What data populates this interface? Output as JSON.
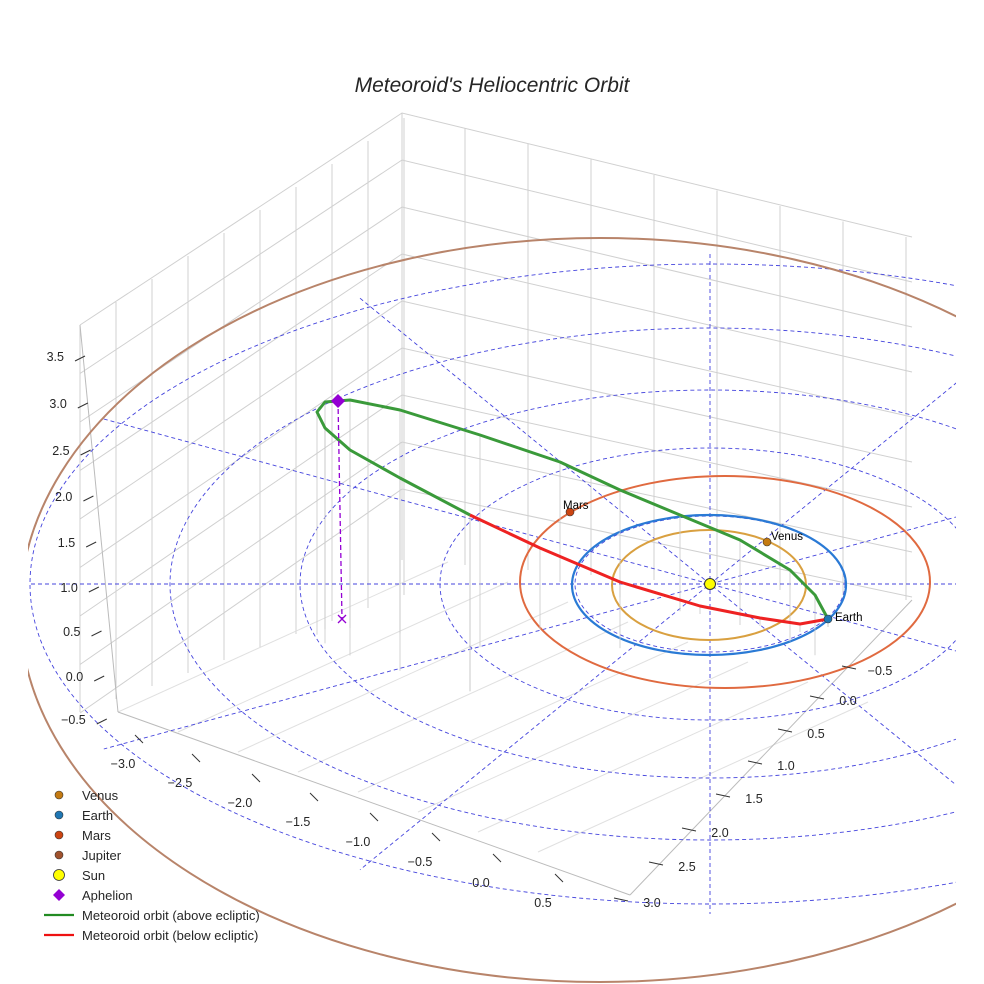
{
  "chart_data": {
    "type": "line3d",
    "title": "Meteoroid's Heliocentric Orbit",
    "x_ticks": [
      "−3.0",
      "−2.5",
      "−2.0",
      "−1.5",
      "−1.0",
      "−0.5",
      "0.0",
      "0.5"
    ],
    "y_ticks": [
      "−0.5",
      "0.0",
      "0.5",
      "1.0",
      "1.5",
      "2.0",
      "2.5",
      "3.0"
    ],
    "z_ticks": [
      "3.5",
      "3.0",
      "2.5",
      "2.0",
      "1.5",
      "1.0",
      "0.5",
      "0.0",
      "−0.5"
    ],
    "planet_labels": {
      "venus": "Venus",
      "earth": "Earth",
      "mars": "Mars"
    },
    "legend": [
      {
        "label": "Venus",
        "kind": "dot",
        "color": "#c47a12"
      },
      {
        "label": "Earth",
        "kind": "dot",
        "color": "#1f77b4"
      },
      {
        "label": "Mars",
        "kind": "dot",
        "color": "#cc4411"
      },
      {
        "label": "Jupiter",
        "kind": "dot",
        "color": "#a0522d"
      },
      {
        "label": "Sun",
        "kind": "sun",
        "color": "#ffff00"
      },
      {
        "label": "Aphelion",
        "kind": "diamond",
        "color": "#9400d3"
      },
      {
        "label": "Meteoroid orbit (above ecliptic)",
        "kind": "line",
        "color": "#228b22"
      },
      {
        "label": "Meteoroid orbit (below ecliptic)",
        "kind": "line",
        "color": "#ee1111"
      }
    ],
    "orbit_colors": {
      "venus": "#d9a040",
      "earth": "#2a7ad5",
      "mars": "#e06a40",
      "jupiter": "#b8846a",
      "grid": "#4444dd"
    },
    "legend_placement": "lower-left"
  }
}
